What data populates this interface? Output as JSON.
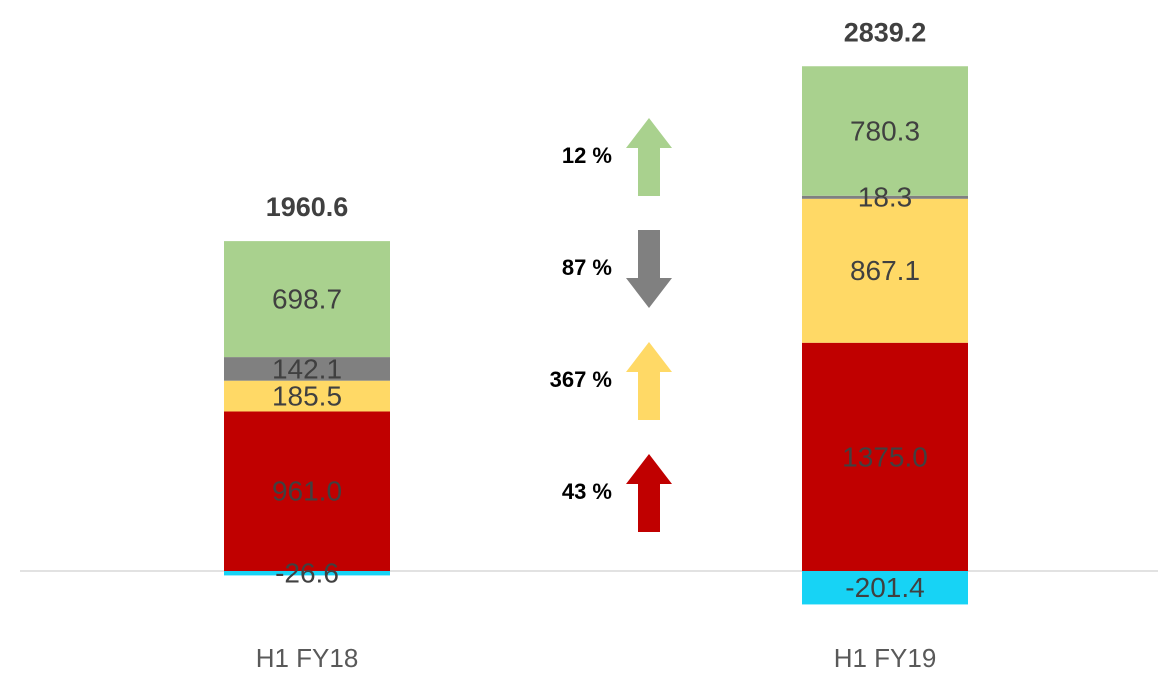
{
  "chart_data": {
    "type": "stacked_bar",
    "categories": [
      "H1 FY18",
      "H1 FY19"
    ],
    "series": [
      {
        "color": "#c00000",
        "values": [
          961.0,
          1375.0
        ],
        "value_labels": [
          "961.0",
          "1375.0"
        ]
      },
      {
        "color": "#ffd966",
        "values": [
          185.5,
          867.1
        ]
      },
      {
        "color": "#808080",
        "values": [
          142.1,
          18.3
        ]
      },
      {
        "color": "#a9d18e",
        "values": [
          698.7,
          780.3
        ]
      },
      {
        "color": "#17d3f5",
        "values": [
          -26.6,
          -201.4
        ]
      }
    ],
    "totals": [
      1960.6,
      2839.2
    ],
    "annotations": [
      {
        "text": "12 %",
        "color": "#a9d18e",
        "direction": "up"
      },
      {
        "text": "87 %",
        "color": "#808080",
        "direction": "down"
      },
      {
        "text": "367 %",
        "color": "#ffd966",
        "direction": "up"
      },
      {
        "text": "43 %",
        "color": "#c00000",
        "direction": "up"
      }
    ]
  }
}
